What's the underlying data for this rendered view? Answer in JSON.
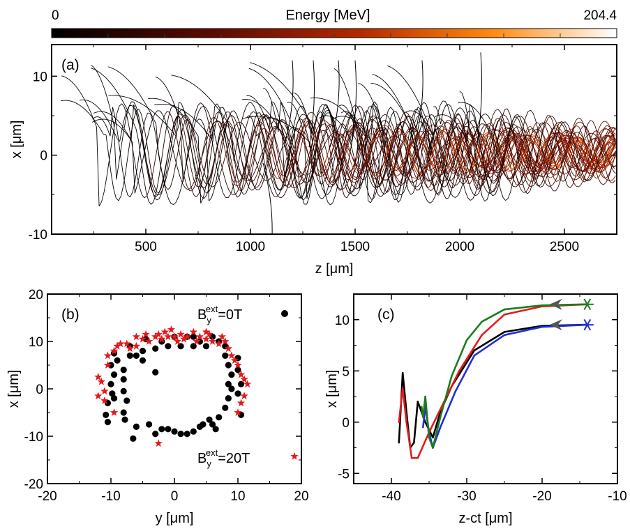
{
  "colorbar": {
    "label": "Energy [MeV]",
    "min_label": "0",
    "max_label": "204.4",
    "stops": [
      "#000000",
      "#5a0a00",
      "#b52a00",
      "#ff8a10",
      "#ffffff"
    ]
  },
  "chart_data": [
    {
      "panel": "(a)",
      "type": "line",
      "xlabel": "z [μm]",
      "ylabel": "x [μm]",
      "xlim": [
        50,
        2750
      ],
      "ylim": [
        -10,
        14
      ],
      "xticks": [
        "500",
        "1000",
        "1500",
        "2000",
        "2500"
      ],
      "yticks": [
        "-10",
        "0",
        "10"
      ],
      "color_scale": "energy",
      "description_data": {
        "num_trajectories": 40,
        "oscillation_decays_to_about": 2
      }
    },
    {
      "panel": "(b)",
      "type": "scatter",
      "xlabel": "y [μm]",
      "ylabel": "x [μm]",
      "xlim": [
        -20,
        20
      ],
      "ylim": [
        -20,
        20
      ],
      "xticks": [
        "-20",
        "-10",
        "0",
        "10",
        "20"
      ],
      "yticks": [
        "-20",
        "-10",
        "0",
        "10",
        "20"
      ],
      "legend": [
        {
          "label_main": "B",
          "sub": "y",
          "sup": "ext",
          "value": "=0T",
          "marker": "circle",
          "color": "#000000"
        },
        {
          "label_main": "B",
          "sub": "y",
          "sup": "ext",
          "value": "=20T",
          "marker": "star",
          "color": "#e31a1c"
        }
      ],
      "series": [
        {
          "name": "B_y^ext=0T",
          "color": "#000000",
          "marker": "circle",
          "points": [
            [
              -9.5,
              7.5
            ],
            [
              -9,
              6
            ],
            [
              -10,
              5
            ],
            [
              -9.5,
              3
            ],
            [
              -10,
              1
            ],
            [
              -9.8,
              -1
            ],
            [
              -10.5,
              -3
            ],
            [
              -10.8,
              -5.5
            ],
            [
              -10.5,
              -7
            ],
            [
              -9.5,
              -2
            ],
            [
              -8,
              4
            ],
            [
              -8,
              2
            ],
            [
              -8,
              -0.5
            ],
            [
              -7.5,
              -2.5
            ],
            [
              -8,
              -5
            ],
            [
              -7.8,
              -6.5
            ],
            [
              -6.5,
              -10.5
            ],
            [
              -6,
              -8
            ],
            [
              -7,
              7
            ],
            [
              -7,
              9
            ],
            [
              -5,
              8
            ],
            [
              -4,
              -7.5
            ],
            [
              -3,
              -9.5
            ],
            [
              -2,
              -8.5
            ],
            [
              -1,
              -8.5
            ],
            [
              0,
              -9
            ],
            [
              1,
              -9.5
            ],
            [
              2,
              -9.5
            ],
            [
              3,
              -9
            ],
            [
              4,
              -8
            ],
            [
              4.5,
              -7.5
            ],
            [
              5.5,
              -6.5
            ],
            [
              6,
              -7.5
            ],
            [
              6.5,
              -8.5
            ],
            [
              7,
              -6
            ],
            [
              8,
              -4
            ],
            [
              8.5,
              -2
            ],
            [
              9,
              0
            ],
            [
              8.5,
              1
            ],
            [
              9,
              3
            ],
            [
              8.5,
              5
            ],
            [
              8,
              7
            ],
            [
              7,
              10
            ],
            [
              6,
              11
            ],
            [
              5,
              9
            ],
            [
              4,
              10
            ],
            [
              3,
              11
            ],
            [
              2,
              11
            ],
            [
              1,
              9
            ],
            [
              0,
              11
            ],
            [
              -1,
              9
            ],
            [
              -2,
              10
            ],
            [
              -3,
              3.5
            ],
            [
              -5,
              6
            ],
            [
              -6,
              7
            ],
            [
              -4.5,
              10.5
            ],
            [
              10.5,
              -5.5
            ],
            [
              10,
              -1
            ],
            [
              10.5,
              1
            ],
            [
              10,
              4
            ],
            [
              10,
              6.5
            ],
            [
              8,
              9
            ],
            [
              3,
              9
            ],
            [
              -3,
              8.5
            ]
          ]
        },
        {
          "name": "B_y^ext=20T",
          "color": "#e31a1c",
          "marker": "star",
          "points": [
            [
              -12,
              2.5
            ],
            [
              -11.5,
              1.5
            ],
            [
              -11,
              -0.5
            ],
            [
              -12,
              -1.5
            ],
            [
              -11,
              -2.5
            ],
            [
              -10.5,
              5
            ],
            [
              -10.5,
              7
            ],
            [
              -9.5,
              8
            ],
            [
              -9,
              9
            ],
            [
              -9.5,
              -5
            ],
            [
              -7.5,
              9.5
            ],
            [
              -7,
              8.5
            ],
            [
              -6,
              9
            ],
            [
              -6,
              11
            ],
            [
              -5,
              10.5
            ],
            [
              -4.5,
              11.5
            ],
            [
              -4,
              10
            ],
            [
              -3,
              11
            ],
            [
              -2.5,
              11.5
            ],
            [
              -2,
              10.5
            ],
            [
              -1.5,
              12
            ],
            [
              -1,
              11
            ],
            [
              0,
              11
            ],
            [
              0.5,
              10
            ],
            [
              1,
              11.5
            ],
            [
              1.5,
              10.5
            ],
            [
              2,
              11
            ],
            [
              3,
              12
            ],
            [
              3.5,
              10
            ],
            [
              4,
              11
            ],
            [
              5,
              10.5
            ],
            [
              5.5,
              11.5
            ],
            [
              6,
              10
            ],
            [
              7,
              9.5
            ],
            [
              8,
              10
            ],
            [
              8.5,
              8.5
            ],
            [
              9,
              7
            ],
            [
              9.5,
              6
            ],
            [
              10,
              5
            ],
            [
              10.5,
              3
            ],
            [
              11,
              2
            ],
            [
              11.5,
              1
            ],
            [
              11,
              -1.5
            ],
            [
              10.5,
              -3
            ],
            [
              10,
              -5
            ],
            [
              -2.5,
              -11.5
            ],
            [
              -8.5,
              9.5
            ],
            [
              7.5,
              11
            ],
            [
              -0.5,
              12.5
            ],
            [
              5,
              12
            ]
          ]
        }
      ]
    },
    {
      "panel": "(c)",
      "type": "line",
      "xlabel": "z-ct [μm]",
      "ylabel": "x [μm]",
      "xlim": [
        -45,
        -10
      ],
      "ylim": [
        -6,
        12.5
      ],
      "xticks": [
        "-40",
        "-30",
        "-20",
        "-10"
      ],
      "yticks": [
        "-5",
        "0",
        "5",
        "10"
      ],
      "series": [
        {
          "name": "black",
          "color": "#000000",
          "start": [
            -14,
            9.5
          ]
        },
        {
          "name": "blue",
          "color": "#1f2fd6",
          "start": [
            -14,
            9.5
          ]
        },
        {
          "name": "red",
          "color": "#e31a1c",
          "start": [
            -14,
            11.5
          ]
        },
        {
          "name": "green",
          "color": "#1b7d1b",
          "start": [
            -14,
            11.5
          ]
        }
      ]
    }
  ]
}
